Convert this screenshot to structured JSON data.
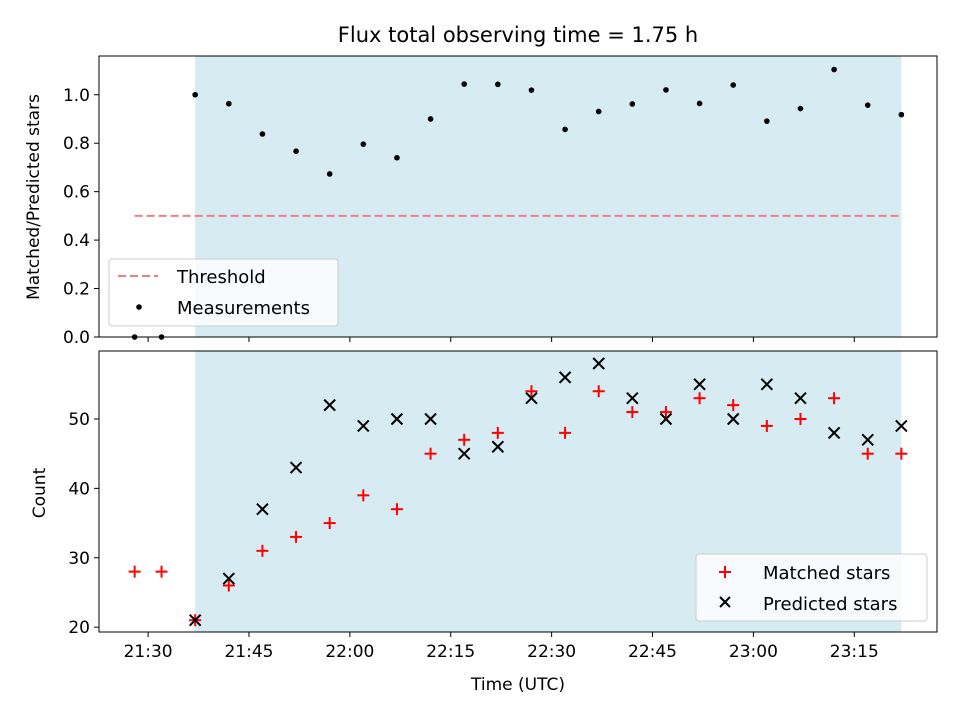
{
  "chart_data": [
    {
      "type": "scatter",
      "title": "Flux total observing time = 1.75 h",
      "ylabel": "Matched/Predicted stars",
      "xlabel": "",
      "ylim": [
        0,
        1.16
      ],
      "yticks": [
        0.0,
        0.2,
        0.4,
        0.6,
        0.8,
        1.0
      ],
      "ytick_labels": [
        "0.0",
        "0.2",
        "0.4",
        "0.6",
        "0.8",
        "1.0"
      ],
      "shaded_span": [
        "21:37",
        "23:22"
      ],
      "threshold": {
        "name": "Threshold",
        "value": 0.5,
        "x_start": "21:28",
        "x_end": "23:22",
        "color": "#f08080"
      },
      "legend": {
        "position": "lower-left",
        "entries": [
          "Threshold",
          "Measurements"
        ]
      },
      "series": [
        {
          "name": "Measurements",
          "color": "#000000",
          "x": [
            "21:28",
            "21:32",
            "21:37",
            "21:42",
            "21:47",
            "21:52",
            "21:57",
            "22:02",
            "22:07",
            "22:12",
            "22:17",
            "22:22",
            "22:27",
            "22:32",
            "22:37",
            "22:42",
            "22:47",
            "22:52",
            "22:57",
            "23:02",
            "23:07",
            "23:12",
            "23:17",
            "23:22"
          ],
          "y": [
            0.0,
            0.0,
            1.0,
            0.963,
            0.838,
            0.767,
            0.673,
            0.796,
            0.74,
            0.9,
            1.044,
            1.043,
            1.019,
            0.857,
            0.931,
            0.962,
            1.02,
            0.964,
            1.04,
            0.891,
            0.943,
            1.104,
            0.957,
            0.918
          ]
        }
      ]
    },
    {
      "type": "scatter",
      "title": "",
      "ylabel": "Count",
      "xlabel": "Time (UTC)",
      "ylim": [
        19.3,
        59.8
      ],
      "yticks": [
        20,
        30,
        40,
        50
      ],
      "ytick_labels": [
        "20",
        "30",
        "40",
        "50"
      ],
      "xticks": [
        "21:30",
        "21:45",
        "22:00",
        "22:15",
        "22:30",
        "22:45",
        "23:00",
        "23:15"
      ],
      "shaded_span": [
        "21:37",
        "23:22"
      ],
      "legend": {
        "position": "lower-right",
        "entries": [
          "Matched stars",
          "Predicted stars"
        ]
      },
      "series": [
        {
          "name": "Matched stars",
          "color": "#ff0000",
          "marker": "plus",
          "x": [
            "21:28",
            "21:32",
            "21:37",
            "21:42",
            "21:47",
            "21:52",
            "21:57",
            "22:02",
            "22:07",
            "22:12",
            "22:17",
            "22:22",
            "22:27",
            "22:32",
            "22:37",
            "22:42",
            "22:47",
            "22:52",
            "22:57",
            "23:02",
            "23:07",
            "23:12",
            "23:17",
            "23:22"
          ],
          "y": [
            28,
            28,
            21,
            26,
            31,
            33,
            35,
            39,
            37,
            45,
            47,
            48,
            54,
            48,
            54,
            51,
            51,
            53,
            52,
            49,
            50,
            53,
            45,
            45
          ]
        },
        {
          "name": "Predicted stars",
          "color": "#000000",
          "marker": "x",
          "x": [
            "21:37",
            "21:42",
            "21:47",
            "21:52",
            "21:57",
            "22:02",
            "22:07",
            "22:12",
            "22:17",
            "22:22",
            "22:27",
            "22:32",
            "22:37",
            "22:42",
            "22:47",
            "22:52",
            "22:57",
            "23:02",
            "23:07",
            "23:12",
            "23:17",
            "23:22"
          ],
          "y": [
            21,
            27,
            37,
            43,
            52,
            49,
            50,
            50,
            45,
            46,
            53,
            56,
            58,
            53,
            50,
            55,
            50,
            55,
            53,
            48,
            47,
            49
          ]
        }
      ]
    }
  ]
}
